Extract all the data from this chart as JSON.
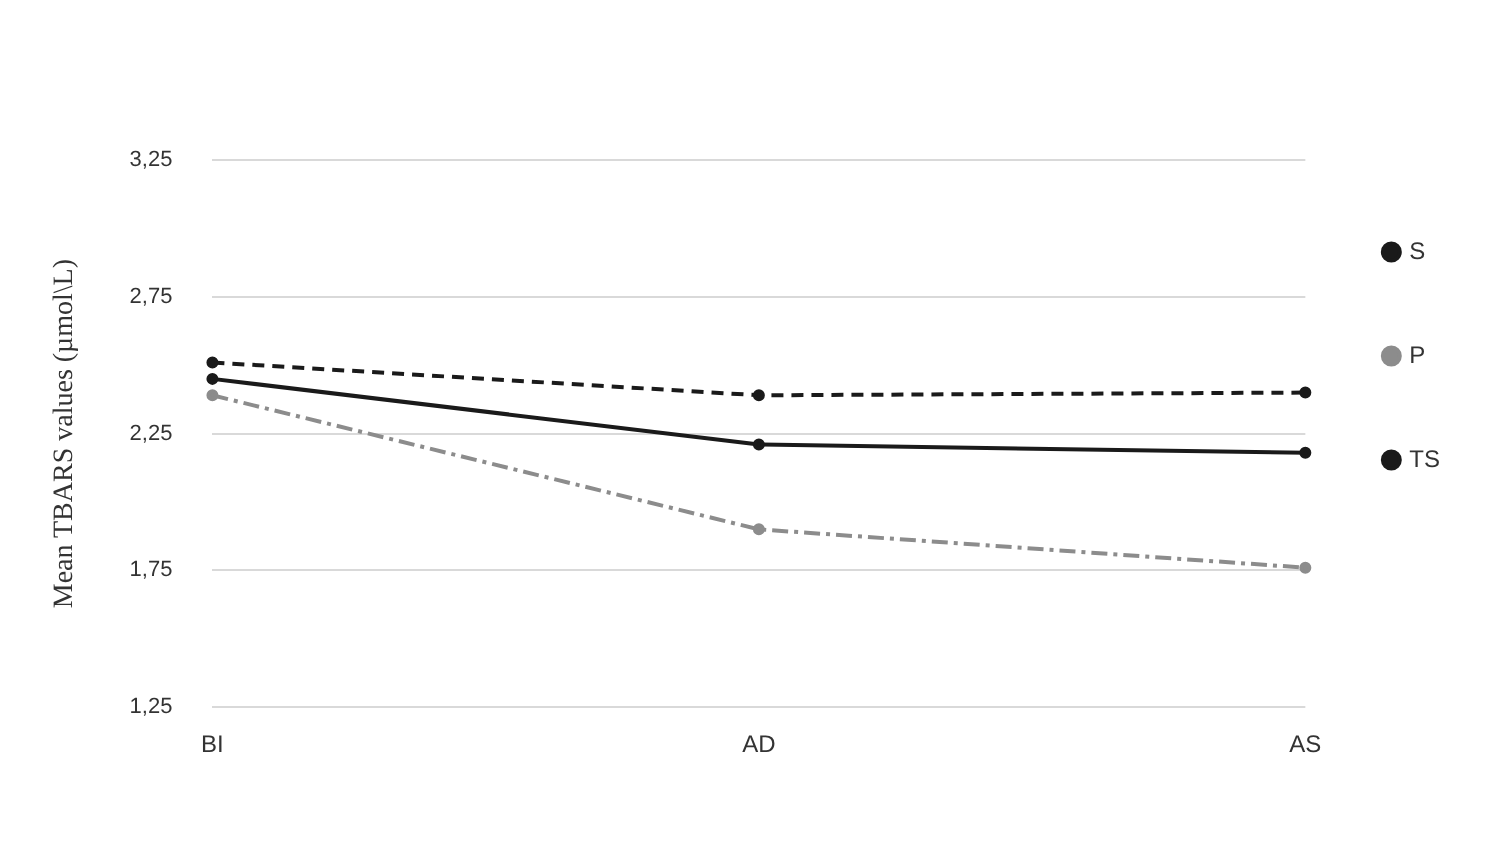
{
  "chart_data": {
    "type": "line",
    "ylabel": "Mean TBARS values (µmol\\L)",
    "categories": [
      "BI",
      "AD",
      "AS"
    ],
    "series": [
      {
        "name": "S",
        "color": "#1a1a1a",
        "values": [
          2.45,
          2.21,
          2.18
        ],
        "line_style": "solid"
      },
      {
        "name": "P",
        "color": "#8c8c8c",
        "values": [
          2.39,
          1.9,
          1.76
        ],
        "line_style": "dashdot"
      },
      {
        "name": "TS",
        "color": "#1a1a1a",
        "values": [
          2.51,
          2.39,
          2.4
        ],
        "line_style": "dashed"
      }
    ],
    "ylim": [
      1.25,
      3.25
    ],
    "yticks": [
      {
        "value": 1.25,
        "label": "1,25"
      },
      {
        "value": 1.75,
        "label": "1,75"
      },
      {
        "value": 2.25,
        "label": "2,25"
      },
      {
        "value": 2.75,
        "label": "2,75"
      },
      {
        "value": 3.25,
        "label": "3,25"
      }
    ],
    "grid": "y",
    "legend": "right",
    "marker": "circle"
  }
}
